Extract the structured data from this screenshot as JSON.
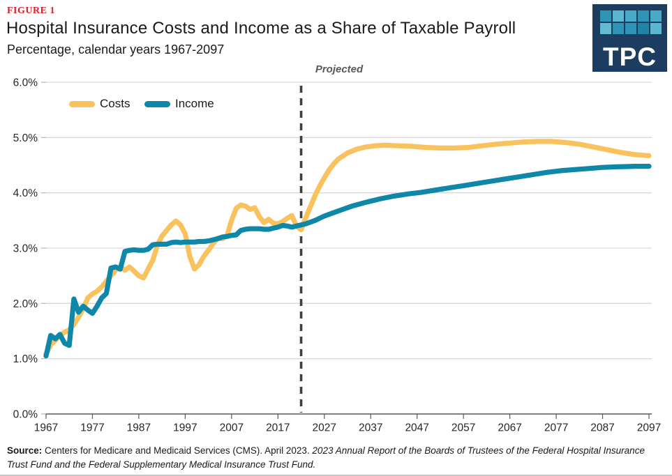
{
  "figure_label": "FIGURE 1",
  "projected": "Projected",
  "logo": {
    "text": "TPC",
    "bg": "#1C3D5F",
    "tiles": [
      "#2E93B4",
      "#5BB6D0",
      "#49A9C6",
      "#2E93B4",
      "#49A9C6",
      "#63BAD2",
      "#2E93B4",
      "#2E93B4",
      "#1F84A6",
      "#5BB6D0"
    ]
  },
  "source": {
    "label": "Source:",
    "text": " Centers for Medicare and Medicaid Services (CMS). April 2023. ",
    "italic": "2023 Annual Report of the Boards of Trustees of the Federal Hospital Insurance Trust Fund and the Federal Supplementary Medical Insurance Trust Fund."
  },
  "chart_data": {
    "type": "line",
    "title": "Hospital Insurance Costs and Income as a Share of Taxable Payroll",
    "subtitle": "Percentage, calendar years 1967-2097",
    "xlabel": "",
    "ylabel": "",
    "xlim": [
      1967,
      2097
    ],
    "ylim": [
      0,
      6
    ],
    "x_ticks": [
      1967,
      1977,
      1987,
      1997,
      2007,
      2017,
      2027,
      2037,
      2047,
      2057,
      2067,
      2077,
      2087,
      2097
    ],
    "y_tick_labels": [
      "0.0%",
      "1.0%",
      "2.0%",
      "3.0%",
      "4.0%",
      "5.0%",
      "6.0%"
    ],
    "grid": "horizontal",
    "legend_position": "top-left-inside",
    "projection_divider_year": 2022,
    "projection_label": "Projected",
    "colors": {
      "grid": "#d9d9d9",
      "axis": "#595959",
      "divider": "#3f3f3f",
      "tick_text": "#262626"
    },
    "series": [
      {
        "name": "Costs",
        "color": "#F9C25F",
        "points": [
          [
            1967,
            1.08
          ],
          [
            1968,
            1.25
          ],
          [
            1969,
            1.33
          ],
          [
            1970,
            1.42
          ],
          [
            1971,
            1.48
          ],
          [
            1972,
            1.52
          ],
          [
            1973,
            1.62
          ],
          [
            1974,
            1.75
          ],
          [
            1975,
            1.9
          ],
          [
            1976,
            2.1
          ],
          [
            1977,
            2.17
          ],
          [
            1978,
            2.22
          ],
          [
            1979,
            2.3
          ],
          [
            1980,
            2.4
          ],
          [
            1981,
            2.5
          ],
          [
            1982,
            2.6
          ],
          [
            1983,
            2.66
          ],
          [
            1984,
            2.6
          ],
          [
            1985,
            2.66
          ],
          [
            1986,
            2.58
          ],
          [
            1987,
            2.5
          ],
          [
            1988,
            2.46
          ],
          [
            1989,
            2.62
          ],
          [
            1990,
            2.78
          ],
          [
            1991,
            3.05
          ],
          [
            1992,
            3.22
          ],
          [
            1993,
            3.32
          ],
          [
            1994,
            3.42
          ],
          [
            1995,
            3.49
          ],
          [
            1996,
            3.42
          ],
          [
            1997,
            3.26
          ],
          [
            1998,
            2.85
          ],
          [
            1999,
            2.62
          ],
          [
            2000,
            2.7
          ],
          [
            2001,
            2.85
          ],
          [
            2002,
            2.96
          ],
          [
            2003,
            3.08
          ],
          [
            2004,
            3.18
          ],
          [
            2005,
            3.17
          ],
          [
            2006,
            3.22
          ],
          [
            2007,
            3.5
          ],
          [
            2008,
            3.72
          ],
          [
            2009,
            3.78
          ],
          [
            2010,
            3.76
          ],
          [
            2011,
            3.7
          ],
          [
            2012,
            3.73
          ],
          [
            2013,
            3.57
          ],
          [
            2014,
            3.46
          ],
          [
            2015,
            3.52
          ],
          [
            2016,
            3.45
          ],
          [
            2017,
            3.44
          ],
          [
            2018,
            3.48
          ],
          [
            2019,
            3.54
          ],
          [
            2020,
            3.59
          ],
          [
            2021,
            3.4
          ],
          [
            2022,
            3.33
          ],
          [
            2023,
            3.55
          ],
          [
            2024,
            3.75
          ],
          [
            2025,
            3.95
          ],
          [
            2026,
            4.12
          ],
          [
            2027,
            4.27
          ],
          [
            2028,
            4.41
          ],
          [
            2029,
            4.52
          ],
          [
            2030,
            4.61
          ],
          [
            2032,
            4.72
          ],
          [
            2034,
            4.79
          ],
          [
            2036,
            4.83
          ],
          [
            2038,
            4.85
          ],
          [
            2040,
            4.86
          ],
          [
            2043,
            4.85
          ],
          [
            2046,
            4.84
          ],
          [
            2049,
            4.82
          ],
          [
            2052,
            4.81
          ],
          [
            2055,
            4.81
          ],
          [
            2058,
            4.82
          ],
          [
            2061,
            4.85
          ],
          [
            2064,
            4.88
          ],
          [
            2067,
            4.9
          ],
          [
            2070,
            4.92
          ],
          [
            2073,
            4.93
          ],
          [
            2076,
            4.93
          ],
          [
            2079,
            4.91
          ],
          [
            2082,
            4.88
          ],
          [
            2085,
            4.83
          ],
          [
            2088,
            4.78
          ],
          [
            2091,
            4.73
          ],
          [
            2094,
            4.69
          ],
          [
            2097,
            4.67
          ]
        ]
      },
      {
        "name": "Income",
        "color": "#0E87A8",
        "points": [
          [
            1967,
            1.05
          ],
          [
            1968,
            1.42
          ],
          [
            1969,
            1.36
          ],
          [
            1970,
            1.44
          ],
          [
            1971,
            1.28
          ],
          [
            1972,
            1.24
          ],
          [
            1973,
            2.08
          ],
          [
            1974,
            1.84
          ],
          [
            1975,
            1.95
          ],
          [
            1976,
            1.88
          ],
          [
            1977,
            1.82
          ],
          [
            1978,
            1.95
          ],
          [
            1979,
            2.1
          ],
          [
            1980,
            2.18
          ],
          [
            1981,
            2.64
          ],
          [
            1982,
            2.66
          ],
          [
            1983,
            2.62
          ],
          [
            1984,
            2.94
          ],
          [
            1985,
            2.96
          ],
          [
            1986,
            2.97
          ],
          [
            1987,
            2.96
          ],
          [
            1988,
            2.96
          ],
          [
            1989,
            2.98
          ],
          [
            1990,
            3.06
          ],
          [
            1991,
            3.07
          ],
          [
            1992,
            3.07
          ],
          [
            1993,
            3.07
          ],
          [
            1994,
            3.1
          ],
          [
            1995,
            3.11
          ],
          [
            1996,
            3.1
          ],
          [
            1997,
            3.11
          ],
          [
            1998,
            3.11
          ],
          [
            1999,
            3.11
          ],
          [
            2000,
            3.12
          ],
          [
            2001,
            3.12
          ],
          [
            2002,
            3.13
          ],
          [
            2003,
            3.15
          ],
          [
            2004,
            3.17
          ],
          [
            2005,
            3.2
          ],
          [
            2006,
            3.21
          ],
          [
            2007,
            3.23
          ],
          [
            2008,
            3.24
          ],
          [
            2009,
            3.32
          ],
          [
            2010,
            3.34
          ],
          [
            2011,
            3.35
          ],
          [
            2012,
            3.35
          ],
          [
            2013,
            3.35
          ],
          [
            2014,
            3.34
          ],
          [
            2015,
            3.34
          ],
          [
            2016,
            3.36
          ],
          [
            2017,
            3.38
          ],
          [
            2018,
            3.41
          ],
          [
            2019,
            3.4
          ],
          [
            2020,
            3.38
          ],
          [
            2021,
            3.4
          ],
          [
            2022,
            3.42
          ],
          [
            2023,
            3.44
          ],
          [
            2024,
            3.47
          ],
          [
            2025,
            3.5
          ],
          [
            2027,
            3.58
          ],
          [
            2030,
            3.67
          ],
          [
            2033,
            3.76
          ],
          [
            2036,
            3.83
          ],
          [
            2039,
            3.89
          ],
          [
            2042,
            3.94
          ],
          [
            2045,
            3.98
          ],
          [
            2048,
            4.01
          ],
          [
            2051,
            4.05
          ],
          [
            2054,
            4.09
          ],
          [
            2057,
            4.13
          ],
          [
            2060,
            4.17
          ],
          [
            2063,
            4.21
          ],
          [
            2066,
            4.25
          ],
          [
            2069,
            4.29
          ],
          [
            2072,
            4.33
          ],
          [
            2075,
            4.37
          ],
          [
            2078,
            4.4
          ],
          [
            2081,
            4.42
          ],
          [
            2084,
            4.44
          ],
          [
            2087,
            4.46
          ],
          [
            2090,
            4.47
          ],
          [
            2094,
            4.48
          ],
          [
            2097,
            4.48
          ]
        ]
      }
    ]
  }
}
